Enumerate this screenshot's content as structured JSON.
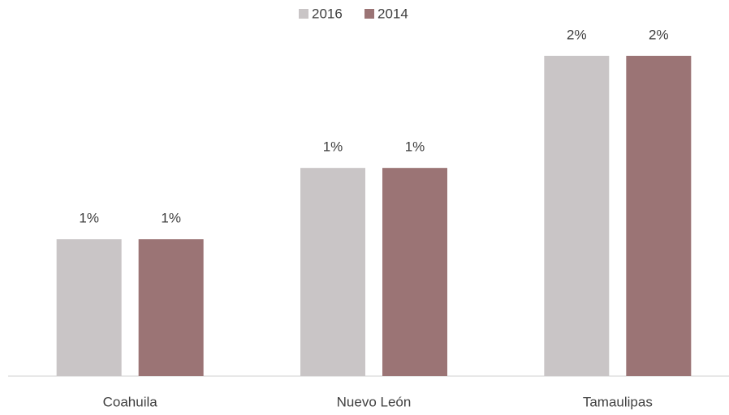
{
  "chart_data": {
    "type": "bar",
    "categories": [
      "Coahuila",
      "Nuevo León",
      "Tamaulipas"
    ],
    "series": [
      {
        "name": "2016",
        "color": "#c9c5c6",
        "values": [
          0.94,
          1.43,
          2.2
        ],
        "value_labels": [
          "1%",
          "1%",
          "2%"
        ]
      },
      {
        "name": "2014",
        "color": "#9b7475",
        "values": [
          0.94,
          1.43,
          2.2
        ],
        "value_labels": [
          "1%",
          "1%",
          "2%"
        ]
      }
    ],
    "ylim": [
      0,
      2.5
    ],
    "legend": "top"
  }
}
